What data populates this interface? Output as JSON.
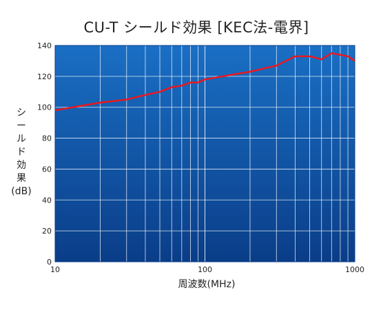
{
  "chart_data": {
    "type": "line",
    "title": "CU-T シールド効果 [KEC法-電界]",
    "xlabel": "周波数(MHz)",
    "ylabel_lines": [
      "シ",
      "ー",
      "ル",
      "ド",
      "効",
      "果",
      "(dB)"
    ],
    "x_scale": "log",
    "xlim": [
      10,
      1000
    ],
    "ylim": [
      0,
      140
    ],
    "x_ticks": [
      {
        "value": 10,
        "label": "10"
      },
      {
        "value": 100,
        "label": "100"
      },
      {
        "value": 1000,
        "label": "1000"
      }
    ],
    "y_ticks": [
      {
        "value": 0,
        "label": "0"
      },
      {
        "value": 20,
        "label": "20"
      },
      {
        "value": 40,
        "label": "40"
      },
      {
        "value": 60,
        "label": "60"
      },
      {
        "value": 80,
        "label": "80"
      },
      {
        "value": 100,
        "label": "100"
      },
      {
        "value": 120,
        "label": "120"
      },
      {
        "value": 140,
        "label": "140"
      }
    ],
    "grid": true,
    "series": [
      {
        "color": "#e8191f",
        "x": [
          10,
          15,
          20,
          30,
          40,
          50,
          60,
          70,
          80,
          90,
          100,
          150,
          200,
          300,
          400,
          500,
          600,
          700,
          800,
          900,
          1000
        ],
        "y": [
          98,
          101,
          103,
          105,
          108,
          110,
          113,
          114,
          116,
          116,
          118,
          121,
          123,
          127,
          133,
          133,
          131,
          135,
          134,
          133,
          130
        ]
      }
    ]
  },
  "colors": {
    "plot_top": "#1a6fc4",
    "plot_bottom": "#0a3d88",
    "grid": "#ffffff",
    "line": "#e8191f"
  }
}
